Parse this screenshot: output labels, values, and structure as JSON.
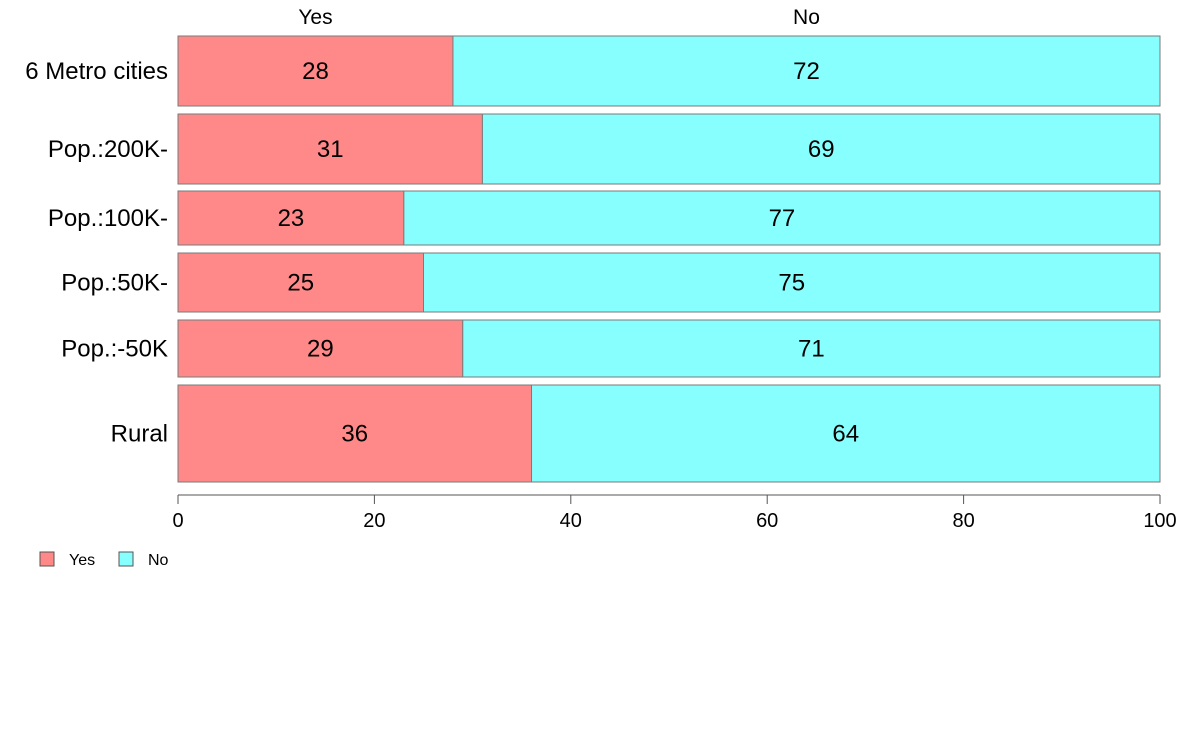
{
  "chart_data": {
    "type": "bar",
    "orientation": "horizontal",
    "stacked": true,
    "categories": [
      "6 Metro cities",
      "Pop.:200K-",
      "Pop.:100K-",
      "Pop.:50K-",
      "Pop.:-50K",
      "Rural"
    ],
    "series": [
      {
        "name": "Yes",
        "values": [
          28,
          31,
          23,
          25,
          29,
          36
        ],
        "color": "#ff8888"
      },
      {
        "name": "No",
        "values": [
          72,
          69,
          77,
          75,
          71,
          64
        ],
        "color": "#88ffff"
      }
    ],
    "column_headers": [
      "Yes",
      "No"
    ],
    "xlim": [
      0,
      100
    ],
    "xticks": [
      "0",
      "20",
      "40",
      "60",
      "80",
      "100"
    ],
    "legend": {
      "position": "bottom-left",
      "entries": [
        "Yes",
        "No"
      ]
    },
    "grid": false
  }
}
